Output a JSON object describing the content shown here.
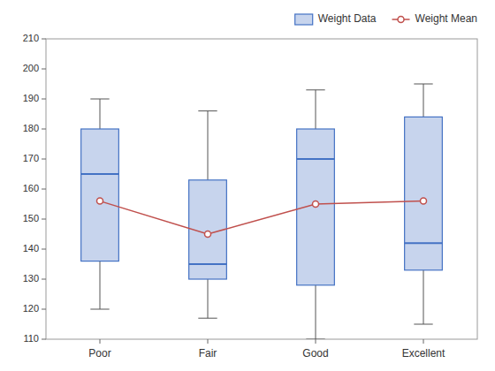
{
  "chart_data": {
    "type": "box",
    "categories": [
      "Poor",
      "Fair",
      "Good",
      "Excellent"
    ],
    "series": [
      {
        "name": "Weight Data",
        "type": "box",
        "color": "#4472C4",
        "whislo": [
          120,
          117,
          110,
          115
        ],
        "q1": [
          136,
          130,
          128,
          133
        ],
        "med": [
          165,
          135,
          170,
          142
        ],
        "q3": [
          180,
          163,
          180,
          184
        ],
        "whishi": [
          190,
          186,
          193,
          195
        ]
      },
      {
        "name": "Weight Mean",
        "type": "line",
        "color": "#C0504D",
        "marker": "circle",
        "values": [
          156,
          145,
          155,
          156
        ]
      }
    ],
    "ylim": [
      110,
      210
    ],
    "yticks": [
      110,
      120,
      130,
      140,
      150,
      160,
      170,
      180,
      190,
      200,
      210
    ],
    "grid": false,
    "legend": "upper right"
  }
}
